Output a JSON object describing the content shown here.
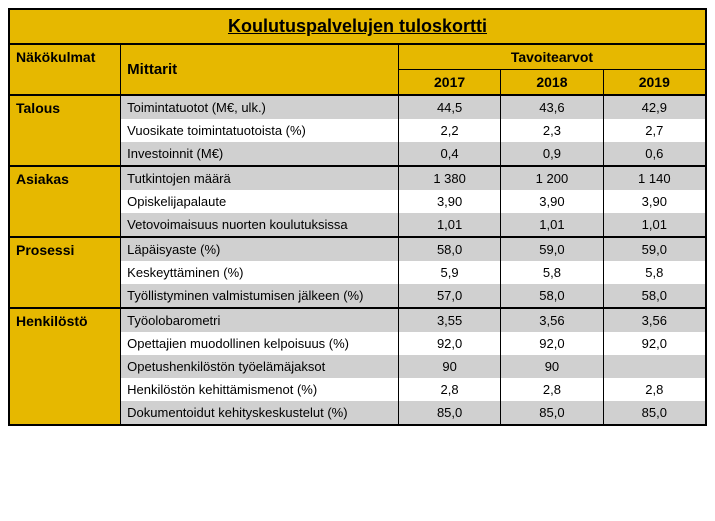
{
  "title": "Koulutuspalvelujen tuloskortti",
  "headers": {
    "perspectives": "Näkökulmat",
    "metrics": "Mittarit",
    "targets": "Tavoitearvot",
    "years": [
      "2017",
      "2018",
      "2019"
    ]
  },
  "colors": {
    "header_bg": "#e6b800",
    "row_bg": "#d0d0d0",
    "row_alt_bg": "#ffffff",
    "border": "#000000"
  },
  "sections": [
    {
      "name": "Talous",
      "rows": [
        {
          "metric": "Toimintatuotot (M€, ulk.)",
          "values": [
            "44,5",
            "43,6",
            "42,9"
          ]
        },
        {
          "metric": "Vuosikate toimintatuotoista (%)",
          "values": [
            "2,2",
            "2,3",
            "2,7"
          ]
        },
        {
          "metric": "Investoinnit (M€)",
          "values": [
            "0,4",
            "0,9",
            "0,6"
          ]
        }
      ]
    },
    {
      "name": "Asiakas",
      "rows": [
        {
          "metric": "Tutkintojen määrä",
          "values": [
            "1 380",
            "1 200",
            "1 140"
          ]
        },
        {
          "metric": "Opiskelijapalaute",
          "values": [
            "3,90",
            "3,90",
            "3,90"
          ]
        },
        {
          "metric": "Vetovoimaisuus nuorten koulutuksissa",
          "values": [
            "1,01",
            "1,01",
            "1,01"
          ]
        }
      ]
    },
    {
      "name": "Prosessi",
      "rows": [
        {
          "metric": "Läpäisyaste (%)",
          "values": [
            "58,0",
            "59,0",
            "59,0"
          ]
        },
        {
          "metric": "Keskeyttäminen (%)",
          "values": [
            "5,9",
            "5,8",
            "5,8"
          ]
        },
        {
          "metric": "Työllistyminen valmistumisen jälkeen (%)",
          "values": [
            "57,0",
            "58,0",
            "58,0"
          ]
        }
      ]
    },
    {
      "name": "Henkilöstö",
      "rows": [
        {
          "metric": "Työolobarometri",
          "values": [
            "3,55",
            "3,56",
            "3,56"
          ]
        },
        {
          "metric": "Opettajien muodollinen kelpoisuus (%)",
          "values": [
            "92,0",
            "92,0",
            "92,0"
          ]
        },
        {
          "metric": "Opetushenkilöstön työelämäjaksot",
          "values": [
            "90",
            "90",
            ""
          ]
        },
        {
          "metric": "Henkilöstön kehittämismenot (%)",
          "values": [
            "2,8",
            "2,8",
            "2,8"
          ]
        },
        {
          "metric": "Dokumentoidut kehityskeskustelut (%)",
          "values": [
            "85,0",
            "85,0",
            "85,0"
          ]
        }
      ]
    }
  ]
}
